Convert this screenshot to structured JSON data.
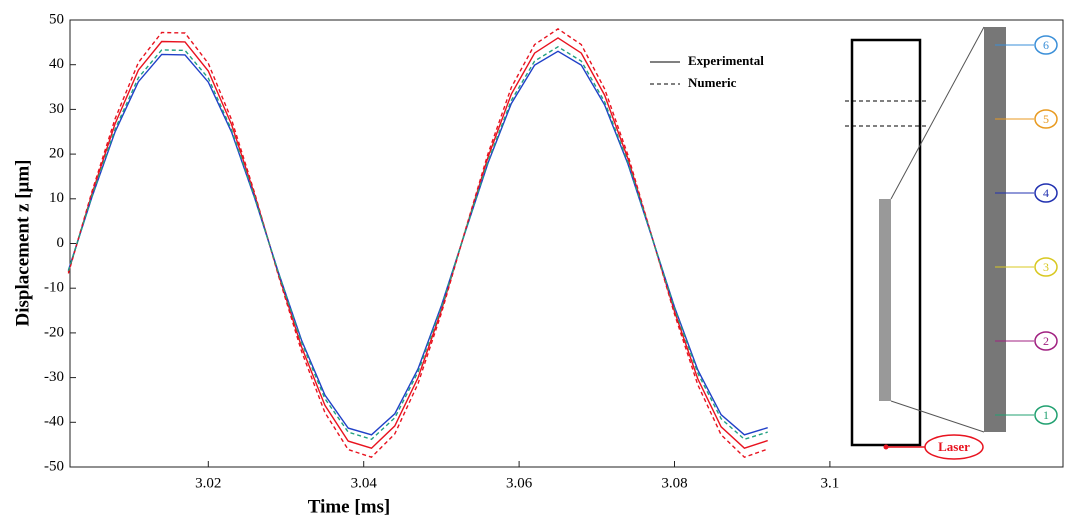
{
  "chart_data": {
    "type": "line",
    "x_label": "Time [ms]",
    "y_label": "Displacement z [μm]",
    "xlim": [
      3.0022,
      3.13
    ],
    "ylim": [
      -50,
      50
    ],
    "xticks": [
      3.02,
      3.04,
      3.06,
      3.08,
      3.1
    ],
    "yticks": [
      -50,
      -40,
      -30,
      -20,
      -10,
      0,
      10,
      20,
      30,
      40,
      50
    ],
    "legend": [
      {
        "label": "Experimental",
        "dash": "solid"
      },
      {
        "label": "Numeric",
        "dash": "dashed"
      }
    ],
    "x": [
      3.002,
      3.005,
      3.008,
      3.011,
      3.014,
      3.017,
      3.02,
      3.023,
      3.026,
      3.029,
      3.032,
      3.035,
      3.038,
      3.041,
      3.044,
      3.047,
      3.05,
      3.053,
      3.056,
      3.059,
      3.062,
      3.065,
      3.068,
      3.071,
      3.074,
      3.077,
      3.08,
      3.083,
      3.086,
      3.089,
      3.092
    ],
    "series": [
      {
        "color": "#e8131f",
        "dash": "solid",
        "values": [
          -6.4,
          11,
          26.8,
          38.8,
          45.2,
          45.1,
          38.6,
          26.6,
          10.7,
          -6.7,
          -23.1,
          -36.2,
          -44.2,
          -45.8,
          -40.8,
          -30,
          -14.9,
          2.4,
          19.3,
          33.4,
          42.6,
          46,
          42.6,
          33.2,
          19,
          2,
          -15.2,
          -30.3,
          -41,
          -45.8,
          -44.1
        ]
      },
      {
        "color": "#2040c8",
        "dash": "solid",
        "values": [
          -6.0,
          10.3,
          25,
          36.2,
          42.3,
          42.2,
          36.1,
          24.9,
          10,
          -6.3,
          -21.6,
          -33.9,
          -41.3,
          -42.8,
          -38.1,
          -28,
          -13.9,
          2.2,
          18,
          31.3,
          39.9,
          43,
          39.9,
          31,
          17.8,
          1.9,
          -14.2,
          -28.3,
          -38.3,
          -42.8,
          -41.2
        ]
      },
      {
        "color": "#e8131f",
        "dash": "dashed",
        "values": [
          -6.7,
          11.5,
          27.9,
          40.5,
          47.2,
          47.1,
          40.3,
          27.7,
          11.1,
          -7,
          -24.1,
          -37.8,
          -46.1,
          -47.8,
          -42.6,
          -31.3,
          -15.6,
          2.5,
          20.1,
          34.9,
          44.5,
          48,
          44.5,
          34.6,
          19.8,
          2.1,
          -15.8,
          -31.6,
          -42.8,
          -47.8,
          -46
        ]
      },
      {
        "color": "#20a080",
        "dash": "dashed",
        "values": [
          -6.1,
          10.5,
          25.6,
          37.1,
          43.3,
          43.2,
          37,
          25.4,
          10.2,
          -6.4,
          -22.1,
          -34.7,
          -42.2,
          -43.8,
          -39,
          -28.7,
          -14.3,
          2.3,
          18.4,
          32,
          40.8,
          44,
          40.8,
          31.7,
          18.2,
          1.9,
          -14.5,
          -29,
          -39.2,
          -43.8,
          -42.2
        ]
      }
    ]
  },
  "diagram": {
    "markers": [
      {
        "label": "6",
        "color": "#3a8fd8"
      },
      {
        "label": "5",
        "color": "#e89a20"
      },
      {
        "label": "4",
        "color": "#2030b0"
      },
      {
        "label": "3",
        "color": "#d8c820"
      },
      {
        "label": "2",
        "color": "#a02080"
      },
      {
        "label": "1",
        "color": "#20a070"
      }
    ],
    "laser": "Laser"
  }
}
